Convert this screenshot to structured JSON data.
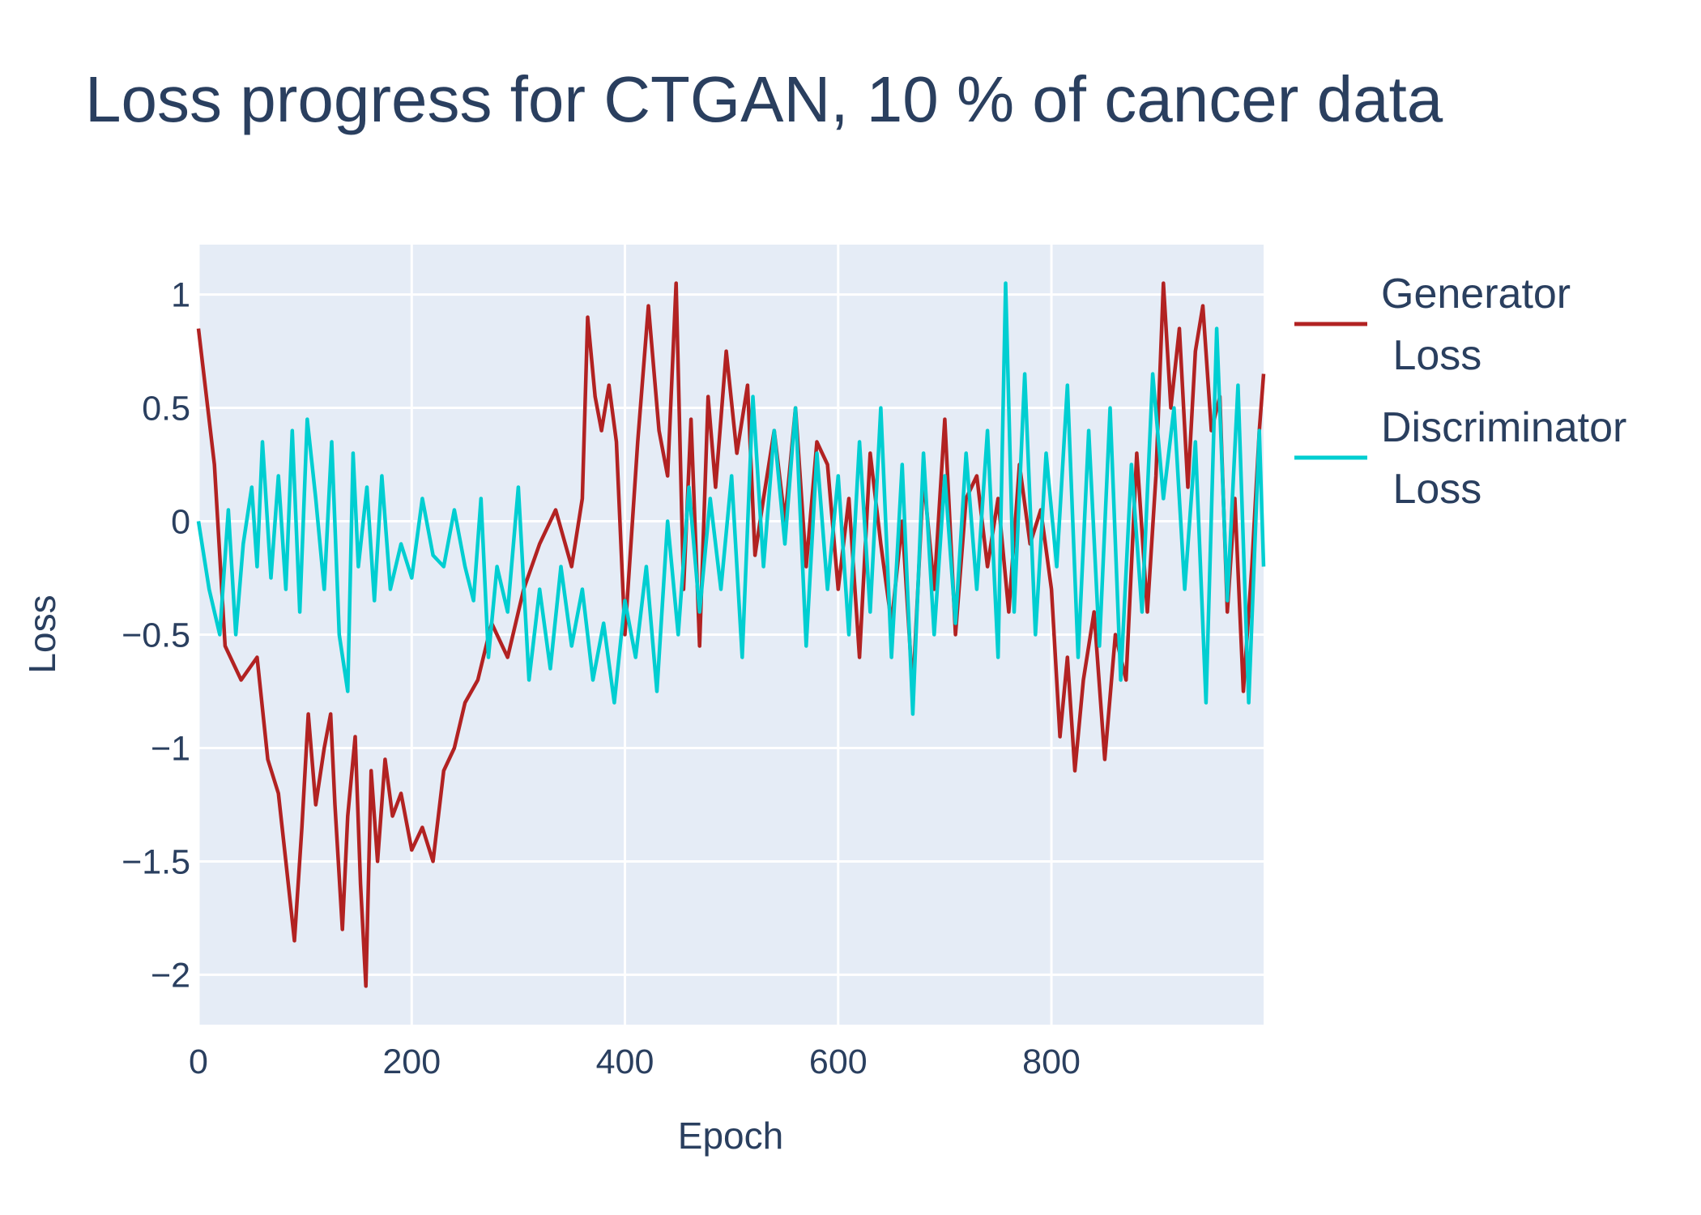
{
  "chart_data": {
    "type": "line",
    "title": "Loss progress for CTGAN, 10 % of cancer data",
    "xlabel": "Epoch",
    "ylabel": "Loss",
    "xlim": [
      0,
      999
    ],
    "ylim": [
      -2.22,
      1.22
    ],
    "x_ticks": [
      0,
      200,
      400,
      600,
      800
    ],
    "x_tick_labels": [
      "0",
      "200",
      "400",
      "600",
      "800"
    ],
    "y_ticks": [
      1,
      0.5,
      0,
      -0.5,
      -1,
      -1.5,
      -2
    ],
    "y_tick_labels": [
      "1",
      "0.5",
      "0",
      "−0.5",
      "−1",
      "−1.5",
      "−2"
    ],
    "grid": true,
    "background": "#e5ecf6",
    "legend_position": "right",
    "series": [
      {
        "name": "Generator Loss",
        "legend_lines": [
          "Generator",
          " Loss"
        ],
        "color": "#b22222",
        "x": [
          0,
          15,
          25,
          40,
          55,
          65,
          75,
          82,
          90,
          97,
          103,
          110,
          118,
          124,
          128,
          135,
          140,
          147,
          152,
          157,
          162,
          168,
          175,
          182,
          190,
          200,
          210,
          220,
          230,
          240,
          250,
          262,
          275,
          290,
          305,
          320,
          335,
          350,
          360,
          365,
          372,
          378,
          385,
          392,
          400,
          412,
          422,
          432,
          440,
          448,
          455,
          462,
          470,
          478,
          485,
          495,
          505,
          515,
          522,
          530,
          540,
          550,
          560,
          570,
          580,
          590,
          600,
          610,
          620,
          630,
          640,
          650,
          660,
          670,
          680,
          690,
          700,
          710,
          720,
          730,
          740,
          750,
          760,
          770,
          780,
          790,
          800,
          808,
          815,
          822,
          830,
          840,
          850,
          860,
          870,
          880,
          890,
          898,
          905,
          912,
          920,
          928,
          935,
          942,
          950,
          958,
          965,
          972,
          980,
          988,
          995,
          999
        ],
        "y": [
          0.85,
          0.25,
          -0.55,
          -0.7,
          -0.6,
          -1.05,
          -1.2,
          -1.5,
          -1.85,
          -1.35,
          -0.85,
          -1.25,
          -1.0,
          -0.85,
          -1.25,
          -1.8,
          -1.3,
          -0.95,
          -1.6,
          -2.05,
          -1.1,
          -1.5,
          -1.05,
          -1.3,
          -1.2,
          -1.45,
          -1.35,
          -1.5,
          -1.1,
          -1.0,
          -0.8,
          -0.7,
          -0.45,
          -0.6,
          -0.3,
          -0.1,
          0.05,
          -0.2,
          0.1,
          0.9,
          0.55,
          0.4,
          0.6,
          0.35,
          -0.5,
          0.35,
          0.95,
          0.4,
          0.2,
          1.05,
          -0.3,
          0.45,
          -0.55,
          0.55,
          0.15,
          0.75,
          0.3,
          0.6,
          -0.15,
          0.1,
          0.4,
          0.0,
          0.5,
          -0.2,
          0.35,
          0.25,
          -0.3,
          0.1,
          -0.6,
          0.3,
          -0.1,
          -0.45,
          0.0,
          -0.75,
          0.2,
          -0.3,
          0.45,
          -0.5,
          0.1,
          0.2,
          -0.2,
          0.1,
          -0.4,
          0.25,
          -0.1,
          0.05,
          -0.3,
          -0.95,
          -0.6,
          -1.1,
          -0.7,
          -0.4,
          -1.05,
          -0.5,
          -0.7,
          0.3,
          -0.4,
          0.2,
          1.05,
          0.5,
          0.85,
          0.15,
          0.75,
          0.95,
          0.4,
          0.55,
          -0.4,
          0.1,
          -0.75,
          -0.2,
          0.4,
          0.65
        ]
      },
      {
        "name": "Discriminator Loss",
        "legend_lines": [
          "Discriminator",
          " Loss"
        ],
        "color": "#00ced1",
        "x": [
          0,
          10,
          20,
          28,
          35,
          42,
          50,
          55,
          60,
          68,
          75,
          82,
          88,
          95,
          102,
          110,
          118,
          125,
          132,
          140,
          145,
          150,
          158,
          165,
          172,
          180,
          190,
          200,
          210,
          220,
          230,
          240,
          250,
          258,
          265,
          272,
          280,
          290,
          300,
          310,
          320,
          330,
          340,
          350,
          360,
          370,
          380,
          390,
          400,
          410,
          420,
          430,
          440,
          450,
          460,
          470,
          480,
          490,
          500,
          510,
          520,
          530,
          540,
          550,
          560,
          570,
          580,
          590,
          600,
          610,
          620,
          630,
          640,
          650,
          660,
          670,
          680,
          690,
          700,
          710,
          720,
          730,
          740,
          750,
          757,
          765,
          775,
          785,
          795,
          805,
          815,
          825,
          835,
          845,
          855,
          865,
          875,
          885,
          895,
          905,
          915,
          925,
          935,
          945,
          955,
          965,
          975,
          985,
          995,
          999
        ],
        "y": [
          0.0,
          -0.3,
          -0.5,
          0.05,
          -0.5,
          -0.1,
          0.15,
          -0.2,
          0.35,
          -0.25,
          0.2,
          -0.3,
          0.4,
          -0.4,
          0.45,
          0.1,
          -0.3,
          0.35,
          -0.5,
          -0.75,
          0.3,
          -0.2,
          0.15,
          -0.35,
          0.2,
          -0.3,
          -0.1,
          -0.25,
          0.1,
          -0.15,
          -0.2,
          0.05,
          -0.2,
          -0.35,
          0.1,
          -0.6,
          -0.2,
          -0.4,
          0.15,
          -0.7,
          -0.3,
          -0.65,
          -0.2,
          -0.55,
          -0.3,
          -0.7,
          -0.45,
          -0.8,
          -0.35,
          -0.6,
          -0.2,
          -0.75,
          0.0,
          -0.5,
          0.15,
          -0.4,
          0.1,
          -0.3,
          0.2,
          -0.6,
          0.55,
          -0.2,
          0.4,
          -0.1,
          0.5,
          -0.55,
          0.3,
          -0.3,
          0.2,
          -0.5,
          0.35,
          -0.4,
          0.5,
          -0.6,
          0.25,
          -0.85,
          0.3,
          -0.5,
          0.2,
          -0.45,
          0.3,
          -0.3,
          0.4,
          -0.6,
          1.05,
          -0.4,
          0.65,
          -0.5,
          0.3,
          -0.2,
          0.6,
          -0.6,
          0.4,
          -0.55,
          0.5,
          -0.7,
          0.25,
          -0.4,
          0.65,
          0.1,
          0.5,
          -0.3,
          0.35,
          -0.8,
          0.85,
          -0.35,
          0.6,
          -0.8,
          0.4,
          -0.2
        ]
      }
    ]
  }
}
